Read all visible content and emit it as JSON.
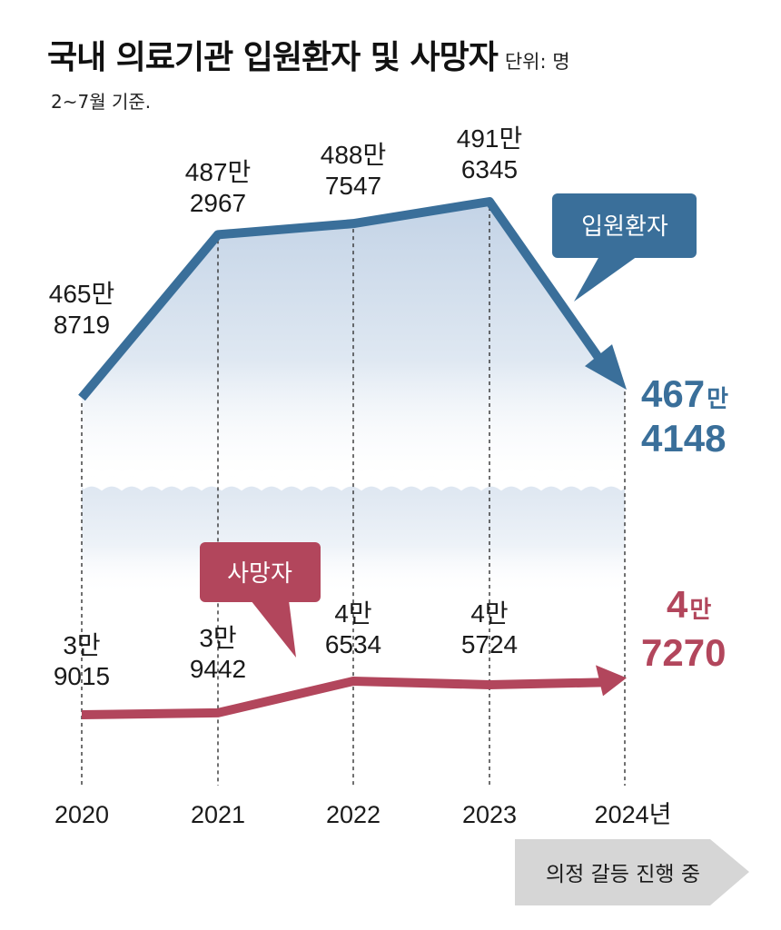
{
  "title": "국내 의료기관 입원환자 및 사망자",
  "unit": "단위: 명",
  "note": "2~7월 기준.",
  "colors": {
    "inpatient": "#3a6f9a",
    "deaths": "#b2465c",
    "area": "#d7e3f0"
  },
  "chart_data": {
    "type": "line",
    "x": [
      "2020",
      "2021",
      "2022",
      "2023",
      "2024"
    ],
    "x_tick_labels": [
      "2020",
      "2021",
      "2022",
      "2023",
      "2024년"
    ],
    "series": [
      {
        "name": "입원환자",
        "values": [
          4658719,
          4872967,
          4887547,
          4916345,
          4674148
        ],
        "labels_top": [
          "465만",
          "487만",
          "488만",
          "491만",
          "467"
        ],
        "labels_bottom": [
          "8719",
          "2967",
          "7547",
          "6345",
          "4148"
        ],
        "final_unit": "만"
      },
      {
        "name": "사망자",
        "values": [
          39015,
          39442,
          46534,
          45724,
          47270
        ],
        "labels_top": [
          "3만",
          "3만",
          "4만",
          "4만",
          "4"
        ],
        "labels_bottom": [
          "9015",
          "9442",
          "6534",
          "5724",
          "7270"
        ],
        "final_unit": "만"
      }
    ],
    "axis_break": true,
    "annotation": "의정 갈등 진행 중"
  }
}
